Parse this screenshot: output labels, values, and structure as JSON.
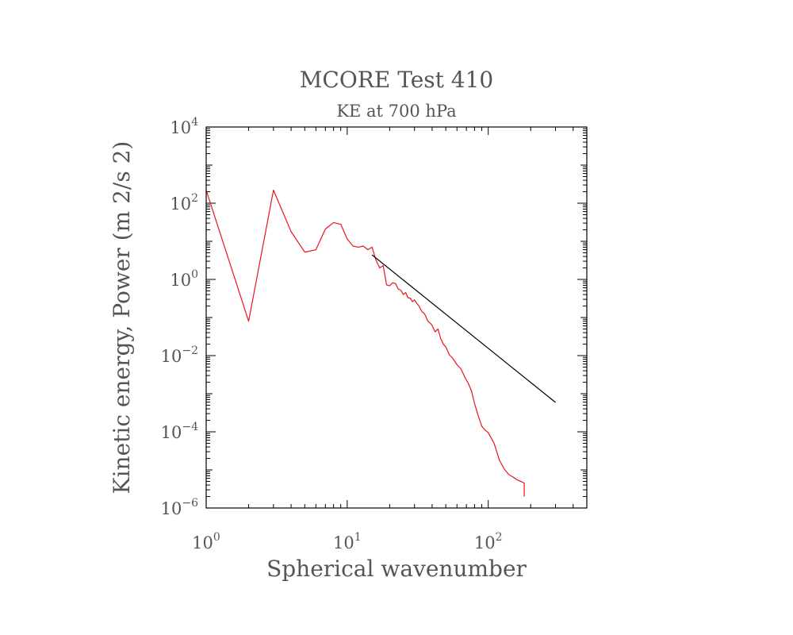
{
  "chart_data": {
    "type": "line",
    "title": "MCORE Test 410",
    "subtitle": "KE at 700 hPa",
    "xlabel": "Spherical wavenumber",
    "ylabel": "Kinetic energy, Power (m 2/s 2)",
    "x_scale": "log",
    "y_scale": "log",
    "xlim": [
      1,
      500
    ],
    "ylim": [
      1e-06,
      10000
    ],
    "x_ticks": [
      {
        "value": 1,
        "base": "10",
        "exp": "0"
      },
      {
        "value": 10,
        "base": "10",
        "exp": "1"
      },
      {
        "value": 100,
        "base": "10",
        "exp": "2"
      }
    ],
    "y_ticks": [
      {
        "value": 10000,
        "base": "10",
        "exp": "4"
      },
      {
        "value": 100,
        "base": "10",
        "exp": "2"
      },
      {
        "value": 1,
        "base": "10",
        "exp": "0"
      },
      {
        "value": 0.01,
        "base": "10",
        "exp": "−2"
      },
      {
        "value": 0.0001,
        "base": "10",
        "exp": "−4"
      },
      {
        "value": 1e-06,
        "base": "10",
        "exp": "−6"
      }
    ],
    "grid": false,
    "series": [
      {
        "color": "#e8141c",
        "x": [
          1,
          2,
          3,
          4,
          5,
          6,
          7,
          8,
          9,
          10,
          11,
          12,
          13,
          14,
          15,
          16,
          17,
          18,
          19,
          20,
          21,
          22,
          23,
          24,
          25,
          26,
          27,
          28,
          29,
          30,
          31,
          32,
          33,
          34,
          35,
          36,
          37,
          38,
          39,
          40,
          42,
          44,
          46,
          48,
          50,
          53,
          56,
          60,
          64,
          68,
          72,
          76,
          80,
          85,
          90,
          95,
          100,
          110,
          120,
          130,
          140,
          150,
          160,
          170,
          180,
          180
        ],
        "y": [
          220,
          0.08,
          220,
          18,
          5.2,
          6,
          21,
          31,
          28,
          11.5,
          7.5,
          7,
          7.5,
          6,
          7,
          3.2,
          2,
          2.3,
          0.72,
          0.68,
          0.82,
          0.78,
          0.56,
          0.52,
          0.4,
          0.45,
          0.33,
          0.32,
          0.26,
          0.29,
          0.24,
          0.21,
          0.17,
          0.14,
          0.13,
          0.11,
          0.085,
          0.075,
          0.07,
          0.062,
          0.042,
          0.05,
          0.028,
          0.02,
          0.017,
          0.0105,
          0.0085,
          0.0058,
          0.0045,
          0.0028,
          0.0019,
          0.0012,
          0.00055,
          0.00026,
          0.00014,
          0.00011,
          9.5e-05,
          5e-05,
          1.8e-05,
          1.05e-05,
          7.5e-06,
          6.5e-06,
          5.5e-06,
          5e-06,
          4.5e-06,
          2e-06
        ]
      },
      {
        "color": "#000000",
        "x": [
          15,
          300
        ],
        "y": [
          4.4,
          0.00059
        ]
      }
    ]
  }
}
